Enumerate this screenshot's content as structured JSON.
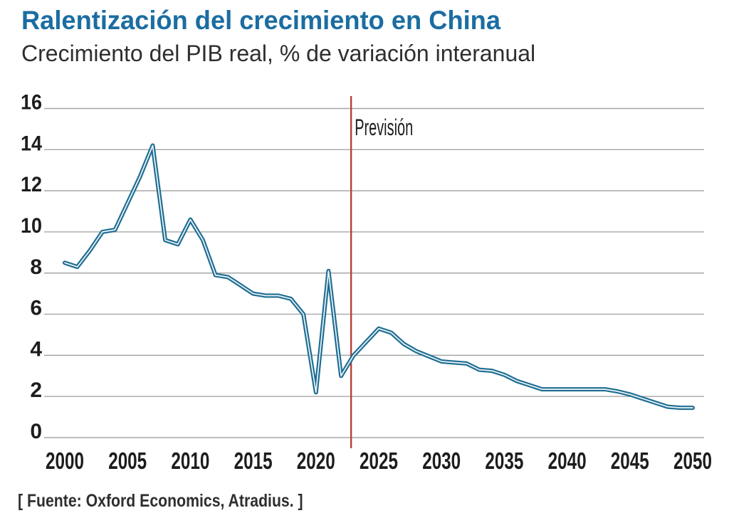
{
  "chart_data": {
    "type": "line",
    "title": "Ralentización del crecimiento en China",
    "subtitle": "Crecimiento del PIB real, % de variación interanual",
    "source": "[ Fuente: Oxford Economics, Atradius. ]",
    "annotation": "Previsión",
    "x": [
      2000,
      2001,
      2002,
      2003,
      2004,
      2005,
      2006,
      2007,
      2008,
      2009,
      2010,
      2011,
      2012,
      2013,
      2014,
      2015,
      2016,
      2017,
      2018,
      2019,
      2020,
      2021,
      2022,
      2023,
      2024,
      2025,
      2026,
      2027,
      2028,
      2029,
      2030,
      2031,
      2032,
      2033,
      2034,
      2035,
      2036,
      2037,
      2038,
      2039,
      2040,
      2041,
      2042,
      2043,
      2044,
      2045,
      2046,
      2047,
      2048,
      2049,
      2050
    ],
    "values": [
      8.5,
      8.3,
      9.1,
      10.0,
      10.1,
      11.4,
      12.7,
      14.2,
      9.6,
      9.4,
      10.6,
      9.6,
      7.9,
      7.8,
      7.4,
      7.0,
      6.9,
      6.9,
      6.75,
      6.0,
      2.2,
      8.1,
      3.0,
      4.0,
      4.65,
      5.3,
      5.1,
      4.55,
      4.2,
      3.95,
      3.7,
      3.65,
      3.6,
      3.3,
      3.25,
      3.05,
      2.75,
      2.55,
      2.35,
      2.35,
      2.35,
      2.35,
      2.35,
      2.35,
      2.25,
      2.1,
      1.9,
      1.7,
      1.5,
      1.45,
      1.45
    ],
    "xlabel": "",
    "ylabel": "",
    "ylim": [
      0,
      16
    ],
    "ytick_step": 2,
    "xticks": [
      2000,
      2005,
      2010,
      2015,
      2020,
      2025,
      2030,
      2035,
      2040,
      2045,
      2050
    ],
    "forecast_x": 2022.8,
    "grid": true,
    "legend": false,
    "colors": {
      "line": "#1e6d92",
      "line_core": "#eef5f8",
      "forecast": "#b83a2e",
      "grid": "#a6a6a6",
      "title": "#1b6da1",
      "text": "#1d1d1d"
    }
  }
}
